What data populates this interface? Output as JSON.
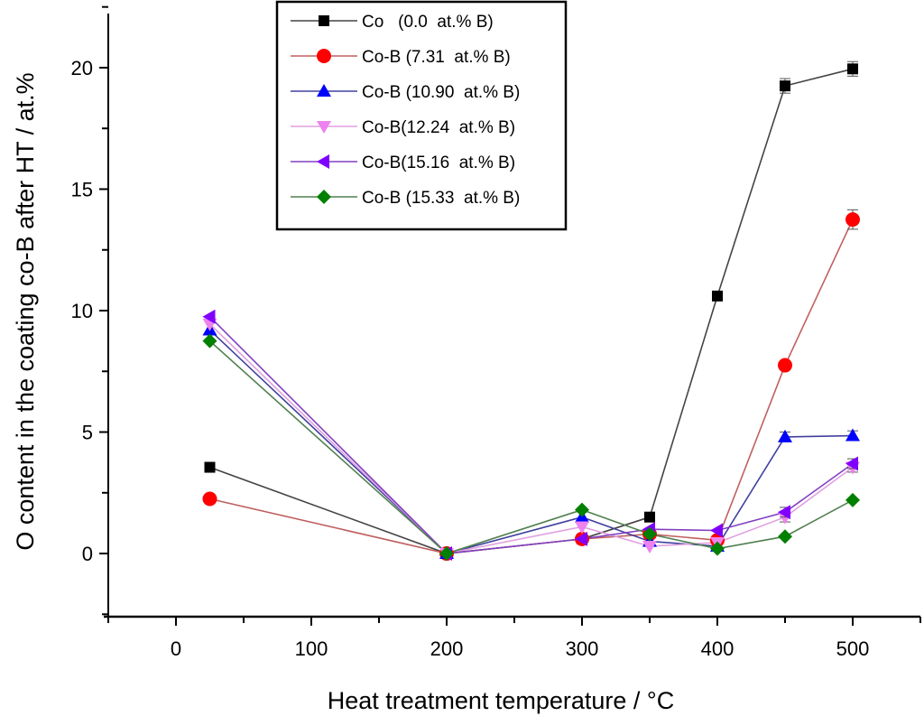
{
  "chart_data": {
    "type": "line",
    "title": "",
    "xlabel": "Heat treatment temperature / °C",
    "ylabel": "O content in the coating co-B after HT / at.%",
    "xlim": [
      -50,
      550
    ],
    "ylim": [
      -2.6,
      22.6
    ],
    "xticks": [
      0,
      100,
      200,
      300,
      400,
      500
    ],
    "xtick_labels": [
      "0",
      "100",
      "200",
      "300",
      "400",
      "500"
    ],
    "yticks": [
      0,
      5,
      10,
      15,
      20
    ],
    "ytick_labels": [
      "0",
      "5",
      "10",
      "15",
      "20"
    ],
    "grid": false,
    "legend_position": "top-center",
    "x": [
      25,
      200,
      300,
      350,
      400,
      450,
      500
    ],
    "series": [
      {
        "name": "Co   (0.0  at.% B)",
        "marker": "square",
        "color": "#000000",
        "line_color": "#444444",
        "values": [
          3.55,
          0.0,
          0.6,
          1.5,
          10.6,
          19.25,
          19.95
        ],
        "error": [
          0,
          0,
          0,
          0,
          0,
          0.3,
          0.3
        ]
      },
      {
        "name": "Co-B (7.31  at.% B)",
        "marker": "circle",
        "color": "#ff0000",
        "line_color": "#c06060",
        "values": [
          2.25,
          0.0,
          0.6,
          0.8,
          0.55,
          7.75,
          13.75
        ],
        "error": [
          0,
          0,
          0,
          0,
          0,
          0,
          0.4
        ]
      },
      {
        "name": "Co-B (10.90  at.% B)",
        "marker": "triangle-up",
        "color": "#0000ff",
        "line_color": "#4040a0",
        "values": [
          9.2,
          0.0,
          1.5,
          0.5,
          0.3,
          4.8,
          4.85
        ],
        "error": [
          0,
          0,
          0,
          0,
          0,
          0.2,
          0.2
        ]
      },
      {
        "name": "Co-B(12.24  at.% B)",
        "marker": "triangle-down",
        "color": "#ee82ee",
        "line_color": "#e0a0e0",
        "values": [
          9.45,
          0.0,
          1.1,
          0.3,
          0.45,
          1.5,
          3.55
        ],
        "error": [
          0,
          0,
          0,
          0,
          0,
          0.2,
          0.2
        ]
      },
      {
        "name": "Co-B(15.16  at.% B)",
        "marker": "triangle-left",
        "color": "#8000ff",
        "line_color": "#8040c0",
        "values": [
          9.75,
          0.0,
          0.6,
          1.0,
          0.95,
          1.7,
          3.7
        ],
        "error": [
          0,
          0,
          0,
          0,
          0,
          0.2,
          0.2
        ]
      },
      {
        "name": "Co-B (15.33  at.% B)",
        "marker": "diamond",
        "color": "#008000",
        "line_color": "#508050",
        "values": [
          8.75,
          0.0,
          1.8,
          0.8,
          0.2,
          0.7,
          2.2
        ],
        "error": [
          0,
          0,
          0,
          0,
          0,
          0,
          0
        ]
      }
    ]
  }
}
